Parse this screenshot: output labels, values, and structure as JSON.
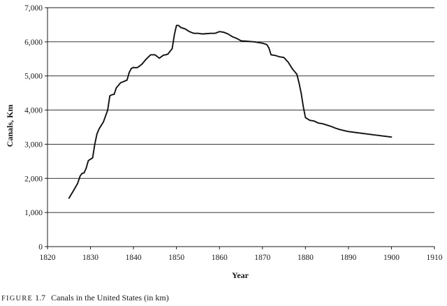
{
  "caption": {
    "label": "FIGURE",
    "number": "1.7",
    "text": "Canals in the United States (in km)"
  },
  "colors": {
    "line": "#111111",
    "gridline": "#1a1a1a",
    "axis": "#1a1a1a",
    "background": "#ffffff"
  },
  "chart_data": {
    "type": "line",
    "title": "",
    "xlabel": "Year",
    "ylabel": "Canals, Km",
    "xlim": [
      1820,
      1910
    ],
    "ylim": [
      0,
      7000
    ],
    "x_ticks": [
      1820,
      1830,
      1840,
      1850,
      1860,
      1870,
      1880,
      1890,
      1900,
      1910
    ],
    "y_ticks": [
      0,
      1000,
      2000,
      3000,
      4000,
      5000,
      6000,
      7000
    ],
    "x_tick_labels": [
      "1820",
      "1830",
      "1840",
      "1850",
      "1860",
      "1870",
      "1880",
      "1890",
      "1900",
      "1910"
    ],
    "y_tick_labels": [
      "0",
      "1,000",
      "2,000",
      "3,000",
      "4,000",
      "5,000",
      "6,000",
      "7,000"
    ],
    "grid": "horizontal",
    "legend": "none",
    "series": [
      {
        "x": [
          1825,
          1826,
          1827,
          1827.6,
          1828,
          1828.5,
          1829,
          1829.5,
          1830,
          1830.5,
          1831,
          1831.5,
          1832,
          1833,
          1834,
          1834.5,
          1835,
          1835.5,
          1836,
          1837,
          1838,
          1838.5,
          1839,
          1839.5,
          1840,
          1840.5,
          1841,
          1842,
          1843,
          1844,
          1845,
          1846,
          1847,
          1847.5,
          1848,
          1849,
          1849.5,
          1850,
          1850.5,
          1851,
          1851.5,
          1852,
          1853,
          1854,
          1855,
          1856,
          1857,
          1858,
          1859,
          1860,
          1860.5,
          1861,
          1862,
          1863,
          1864,
          1865,
          1866,
          1867,
          1868,
          1869,
          1870,
          1871,
          1871.5,
          1872,
          1873,
          1874,
          1875,
          1876,
          1877,
          1878,
          1878.5,
          1879,
          1879.5,
          1880,
          1881,
          1882,
          1883,
          1884,
          1885,
          1886,
          1887,
          1888,
          1889,
          1890,
          1895,
          1900
        ],
        "values": [
          1420,
          1630,
          1850,
          2070,
          2140,
          2160,
          2300,
          2520,
          2560,
          2600,
          3000,
          3300,
          3450,
          3650,
          4000,
          4420,
          4450,
          4460,
          4650,
          4800,
          4850,
          4880,
          5100,
          5220,
          5250,
          5240,
          5250,
          5350,
          5500,
          5620,
          5620,
          5520,
          5610,
          5620,
          5640,
          5800,
          6200,
          6480,
          6480,
          6420,
          6400,
          6380,
          6300,
          6250,
          6250,
          6230,
          6240,
          6250,
          6250,
          6300,
          6290,
          6280,
          6230,
          6150,
          6100,
          6030,
          6020,
          6010,
          6000,
          5980,
          5960,
          5920,
          5820,
          5620,
          5600,
          5560,
          5540,
          5400,
          5200,
          5050,
          4800,
          4500,
          4100,
          3780,
          3700,
          3680,
          3620,
          3600,
          3560,
          3520,
          3470,
          3430,
          3400,
          3370,
          3290,
          3210
        ]
      }
    ]
  }
}
